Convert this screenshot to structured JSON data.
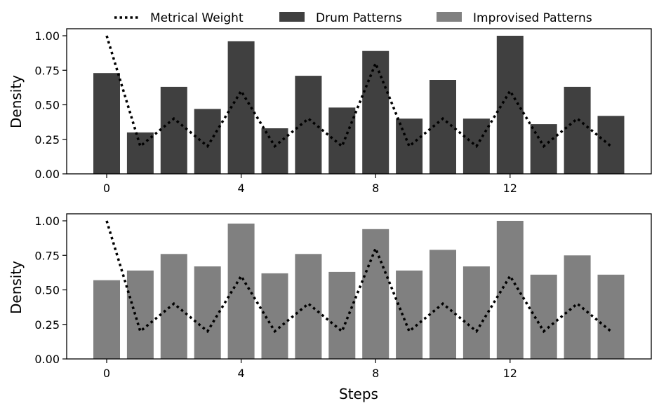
{
  "chart_data": [
    {
      "type": "bar",
      "panel": "top",
      "x": [
        0,
        1,
        2,
        3,
        4,
        5,
        6,
        7,
        8,
        9,
        10,
        11,
        12,
        13,
        14,
        15
      ],
      "xticks": [
        "0",
        "4",
        "8",
        "12"
      ],
      "xtick_values": [
        0,
        4,
        8,
        12
      ],
      "yticks": [
        "0.00",
        "0.25",
        "0.50",
        "0.75",
        "1.00"
      ],
      "ylim": [
        0,
        1.05
      ],
      "xlabel": "",
      "ylabel": "Density",
      "series": [
        {
          "name": "Drum Patterns",
          "kind": "bar",
          "color": "#404040",
          "values": [
            0.73,
            0.3,
            0.63,
            0.47,
            0.96,
            0.33,
            0.71,
            0.48,
            0.89,
            0.4,
            0.68,
            0.4,
            1.0,
            0.36,
            0.63,
            0.42
          ]
        },
        {
          "name": "Metrical Weight",
          "kind": "line",
          "style": "dotted",
          "color": "#000000",
          "values": [
            1.0,
            0.2,
            0.4,
            0.2,
            0.6,
            0.2,
            0.4,
            0.2,
            0.8,
            0.2,
            0.4,
            0.2,
            0.6,
            0.2,
            0.4,
            0.2
          ]
        }
      ]
    },
    {
      "type": "bar",
      "panel": "bottom",
      "x": [
        0,
        1,
        2,
        3,
        4,
        5,
        6,
        7,
        8,
        9,
        10,
        11,
        12,
        13,
        14,
        15
      ],
      "xticks": [
        "0",
        "4",
        "8",
        "12"
      ],
      "xtick_values": [
        0,
        4,
        8,
        12
      ],
      "yticks": [
        "0.00",
        "0.25",
        "0.50",
        "0.75",
        "1.00"
      ],
      "ylim": [
        0,
        1.05
      ],
      "xlabel": "Steps",
      "ylabel": "Density",
      "series": [
        {
          "name": "Improvised Patterns",
          "kind": "bar",
          "color": "#808080",
          "values": [
            0.57,
            0.64,
            0.76,
            0.67,
            0.98,
            0.62,
            0.76,
            0.63,
            0.94,
            0.64,
            0.79,
            0.67,
            1.0,
            0.61,
            0.75,
            0.61
          ]
        },
        {
          "name": "Metrical Weight",
          "kind": "line",
          "style": "dotted",
          "color": "#000000",
          "values": [
            1.0,
            0.2,
            0.4,
            0.2,
            0.6,
            0.2,
            0.4,
            0.2,
            0.8,
            0.2,
            0.4,
            0.2,
            0.6,
            0.2,
            0.4,
            0.2
          ]
        }
      ]
    }
  ],
  "legend": {
    "placement": "top-center",
    "items": [
      {
        "label": "Metrical Weight",
        "kind": "line",
        "color": "#000000"
      },
      {
        "label": "Drum Patterns",
        "kind": "bar",
        "color": "#404040"
      },
      {
        "label": "Improvised Patterns",
        "kind": "bar",
        "color": "#808080"
      }
    ]
  }
}
